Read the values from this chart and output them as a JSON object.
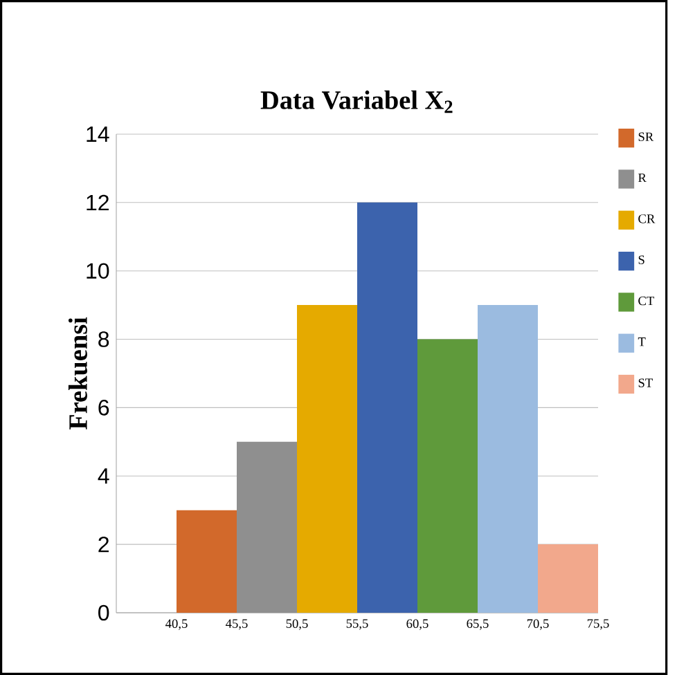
{
  "chart_data": {
    "type": "histogram",
    "title": "Data Variabel X$_{2}$",
    "ylabel": "Frekuensi",
    "bins": [
      40.5,
      45.5,
      50.5,
      55.5,
      60.5,
      65.5,
      70.5,
      75.5
    ],
    "series": [
      {
        "name": "SR",
        "color": "#d2692b",
        "values": [
          3,
          null,
          null,
          null,
          null,
          null,
          null
        ]
      },
      {
        "name": "R",
        "color": "#8f8f8f",
        "values": [
          null,
          5,
          null,
          null,
          null,
          null,
          null
        ]
      },
      {
        "name": "CR",
        "color": "#e5aa00",
        "values": [
          null,
          null,
          9,
          null,
          null,
          null,
          null
        ]
      },
      {
        "name": "S",
        "color": "#3c63ad",
        "values": [
          null,
          null,
          null,
          12,
          null,
          null,
          null
        ]
      },
      {
        "name": "CT",
        "color": "#5f9a3b",
        "values": [
          null,
          null,
          null,
          null,
          8,
          null,
          null
        ]
      },
      {
        "name": "T",
        "color": "#9bbbe0",
        "values": [
          null,
          null,
          null,
          null,
          null,
          9,
          null
        ]
      },
      {
        "name": "ST",
        "color": "#f2a88c",
        "values": [
          null,
          null,
          null,
          null,
          null,
          null,
          2
        ]
      }
    ],
    "xlim": [
      35.5,
      75.5
    ],
    "ylim": [
      0,
      14
    ],
    "xticks": [
      {
        "value": 40.5,
        "label": "40,5"
      },
      {
        "value": 45.5,
        "label": "45,5"
      },
      {
        "value": 50.5,
        "label": "50,5"
      },
      {
        "value": 55.5,
        "label": "55,5"
      },
      {
        "value": 60.5,
        "label": "60,5"
      },
      {
        "value": 65.5,
        "label": "65,5"
      },
      {
        "value": 70.5,
        "label": "70,5"
      },
      {
        "value": 75.5,
        "label": "75,5"
      }
    ],
    "yticks": [
      0,
      2,
      4,
      6,
      8,
      10,
      12,
      14
    ],
    "grid": "y",
    "legend": "right"
  }
}
